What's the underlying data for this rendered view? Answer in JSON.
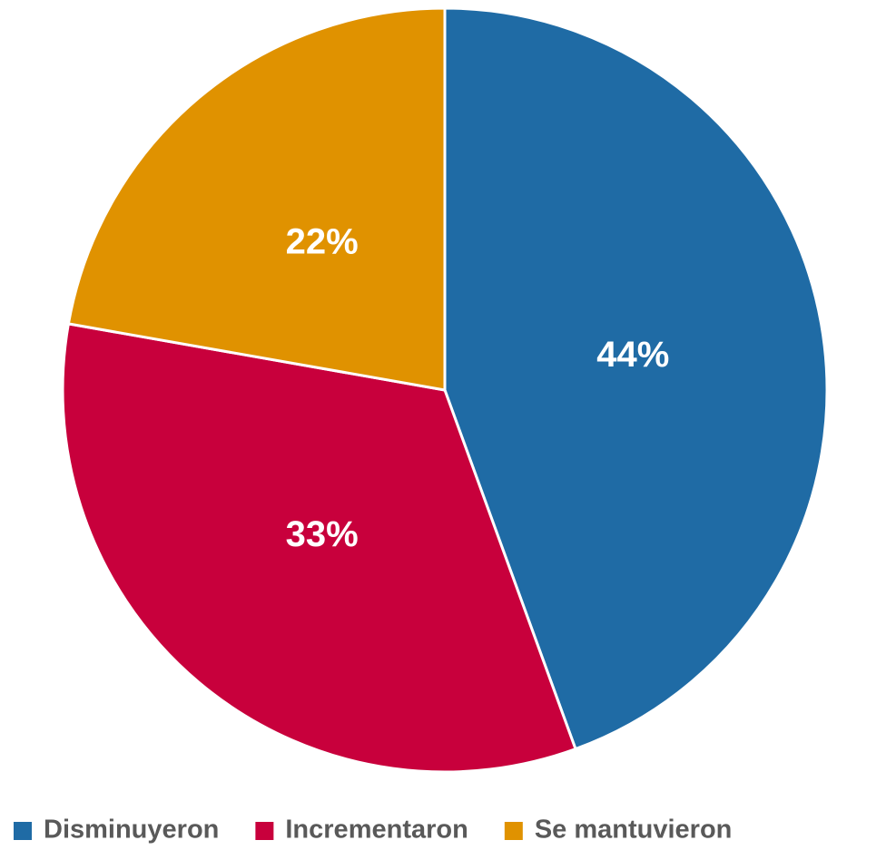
{
  "chart_data": {
    "type": "pie",
    "categories": [
      "Disminuyeron",
      "Incrementaron",
      "Se mantuvieron"
    ],
    "values": [
      44,
      33,
      22
    ],
    "value_labels": [
      "44%",
      "33%",
      "22%"
    ],
    "colors": [
      "#1f6ba5",
      "#c8003c",
      "#e09200"
    ],
    "legend": "bottom"
  }
}
